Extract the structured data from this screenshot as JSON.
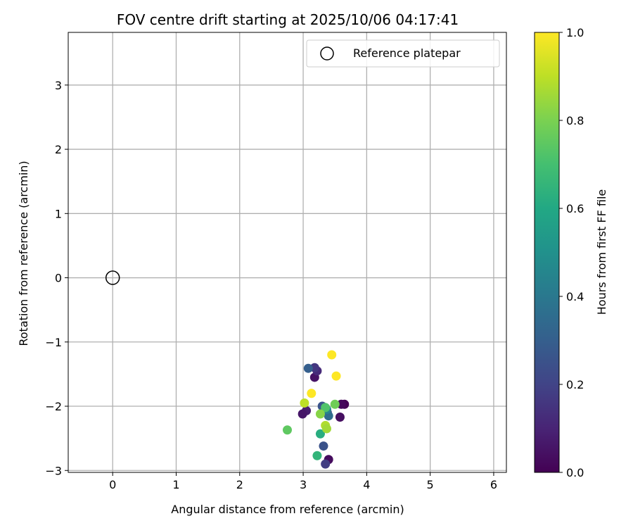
{
  "chart_data": {
    "type": "scatter",
    "title": "FOV centre drift starting at 2025/10/06 04:17:41",
    "xlabel": "Angular distance from reference (arcmin)",
    "ylabel": "Rotation from reference (arcmin)",
    "xlim": [
      -0.7,
      6.2
    ],
    "ylim": [
      -3.03,
      3.82
    ],
    "xticks": [
      0,
      1,
      2,
      3,
      4,
      5,
      6
    ],
    "yticks": [
      -3,
      -2,
      -1,
      0,
      1,
      2,
      3
    ],
    "grid": true,
    "legend": {
      "position": "top-right",
      "entries": [
        "Reference platepar"
      ]
    },
    "reference_point": {
      "x": 0,
      "y": 0,
      "label": "Reference platepar"
    },
    "colorbar": {
      "label": "Hours from first FF file",
      "colormap": "viridis",
      "range": [
        0.0,
        1.0
      ],
      "ticks": [
        0.0,
        0.2,
        0.4,
        0.6,
        0.8,
        1.0
      ],
      "tick_labels": [
        "0.0",
        "0.2",
        "0.4",
        "0.6",
        "0.8",
        "1.0"
      ]
    },
    "series": [
      {
        "name": "FOV centre drift",
        "points": [
          {
            "x": 3.65,
            "y": -1.97,
            "c": 0.0
          },
          {
            "x": 3.6,
            "y": -1.97,
            "c": 0.02
          },
          {
            "x": 3.58,
            "y": -2.17,
            "c": 0.04
          },
          {
            "x": 3.4,
            "y": -2.83,
            "c": 0.03
          },
          {
            "x": 3.05,
            "y": -2.07,
            "c": 0.08
          },
          {
            "x": 2.99,
            "y": -2.12,
            "c": 0.06
          },
          {
            "x": 3.18,
            "y": -1.55,
            "c": 0.05
          },
          {
            "x": 3.22,
            "y": -1.45,
            "c": 0.12
          },
          {
            "x": 3.18,
            "y": -1.4,
            "c": 0.16
          },
          {
            "x": 3.35,
            "y": -2.9,
            "c": 0.18
          },
          {
            "x": 3.32,
            "y": -2.62,
            "c": 0.25
          },
          {
            "x": 3.38,
            "y": -2.1,
            "c": 0.22
          },
          {
            "x": 3.08,
            "y": -1.41,
            "c": 0.3
          },
          {
            "x": 3.3,
            "y": -2.0,
            "c": 0.26
          },
          {
            "x": 3.4,
            "y": -2.15,
            "c": 0.35
          },
          {
            "x": 3.37,
            "y": -2.05,
            "c": 0.45
          },
          {
            "x": 3.27,
            "y": -2.43,
            "c": 0.62
          },
          {
            "x": 3.22,
            "y": -2.77,
            "c": 0.65
          },
          {
            "x": 2.75,
            "y": -2.37,
            "c": 0.75
          },
          {
            "x": 3.35,
            "y": -2.02,
            "c": 0.72
          },
          {
            "x": 3.5,
            "y": -1.97,
            "c": 0.78
          },
          {
            "x": 3.27,
            "y": -2.12,
            "c": 0.82
          },
          {
            "x": 3.35,
            "y": -2.3,
            "c": 0.88
          },
          {
            "x": 3.37,
            "y": -2.35,
            "c": 0.86
          },
          {
            "x": 3.02,
            "y": -1.95,
            "c": 0.9
          },
          {
            "x": 3.13,
            "y": -1.8,
            "c": 1.0
          },
          {
            "x": 3.45,
            "y": -1.2,
            "c": 1.0
          },
          {
            "x": 3.52,
            "y": -1.53,
            "c": 1.0
          }
        ]
      }
    ]
  }
}
